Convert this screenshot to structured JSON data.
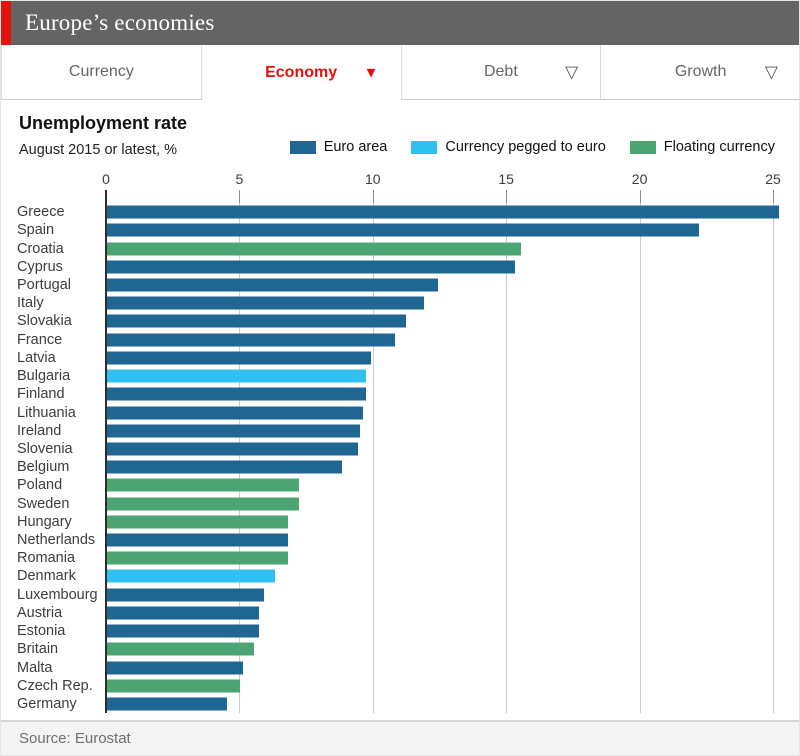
{
  "header": {
    "title": "Europe’s economies"
  },
  "tabs": [
    {
      "label": "Currency",
      "triangle": "none",
      "active": false
    },
    {
      "label": "Economy",
      "triangle": "filled",
      "active": true
    },
    {
      "label": "Debt",
      "triangle": "outline",
      "active": false
    },
    {
      "label": "Growth",
      "triangle": "outline",
      "active": false
    }
  ],
  "colors": {
    "accent_red": "#e3120b",
    "header_gray": "#646464",
    "euro_area": "#1f6693",
    "pegged": "#2fc1f0",
    "floating": "#4ca473"
  },
  "chart_data": {
    "type": "bar",
    "orientation": "horizontal",
    "title": "Unemployment rate",
    "subtitle": "August 2015 or latest, %",
    "xlabel": "",
    "ylabel": "",
    "xlim": [
      0,
      25
    ],
    "x_ticks": [
      0,
      5,
      10,
      15,
      20,
      25
    ],
    "grid": true,
    "legend_position": "top-right",
    "legend": [
      {
        "label": "Euro area",
        "group": "euro_area"
      },
      {
        "label": "Currency pegged to euro",
        "group": "pegged"
      },
      {
        "label": "Floating currency",
        "group": "floating"
      }
    ],
    "countries": [
      {
        "name": "Greece",
        "value": 25.2,
        "group": "euro_area"
      },
      {
        "name": "Spain",
        "value": 22.2,
        "group": "euro_area"
      },
      {
        "name": "Croatia",
        "value": 15.5,
        "group": "floating"
      },
      {
        "name": "Cyprus",
        "value": 15.3,
        "group": "euro_area"
      },
      {
        "name": "Portugal",
        "value": 12.4,
        "group": "euro_area"
      },
      {
        "name": "Italy",
        "value": 11.9,
        "group": "euro_area"
      },
      {
        "name": "Slovakia",
        "value": 11.2,
        "group": "euro_area"
      },
      {
        "name": "France",
        "value": 10.8,
        "group": "euro_area"
      },
      {
        "name": "Latvia",
        "value": 9.9,
        "group": "euro_area"
      },
      {
        "name": "Bulgaria",
        "value": 9.7,
        "group": "pegged"
      },
      {
        "name": "Finland",
        "value": 9.7,
        "group": "euro_area"
      },
      {
        "name": "Lithuania",
        "value": 9.6,
        "group": "euro_area"
      },
      {
        "name": "Ireland",
        "value": 9.5,
        "group": "euro_area"
      },
      {
        "name": "Slovenia",
        "value": 9.4,
        "group": "euro_area"
      },
      {
        "name": "Belgium",
        "value": 8.8,
        "group": "euro_area"
      },
      {
        "name": "Poland",
        "value": 7.2,
        "group": "floating"
      },
      {
        "name": "Sweden",
        "value": 7.2,
        "group": "floating"
      },
      {
        "name": "Hungary",
        "value": 6.8,
        "group": "floating"
      },
      {
        "name": "Netherlands",
        "value": 6.8,
        "group": "euro_area"
      },
      {
        "name": "Romania",
        "value": 6.8,
        "group": "floating"
      },
      {
        "name": "Denmark",
        "value": 6.3,
        "group": "pegged"
      },
      {
        "name": "Luxembourg",
        "value": 5.9,
        "group": "euro_area"
      },
      {
        "name": "Austria",
        "value": 5.7,
        "group": "euro_area"
      },
      {
        "name": "Estonia",
        "value": 5.7,
        "group": "euro_area"
      },
      {
        "name": "Britain",
        "value": 5.5,
        "group": "floating"
      },
      {
        "name": "Malta",
        "value": 5.1,
        "group": "euro_area"
      },
      {
        "name": "Czech Rep.",
        "value": 5.0,
        "group": "floating"
      },
      {
        "name": "Germany",
        "value": 4.5,
        "group": "euro_area"
      }
    ]
  },
  "footer": {
    "source": "Source: Eurostat"
  }
}
